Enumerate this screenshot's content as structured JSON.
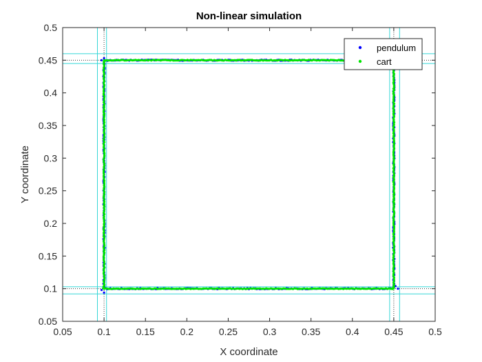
{
  "chart_data": {
    "type": "scatter",
    "title": "Non-linear simulation",
    "xlabel": "X coordinate",
    "ylabel": "Y coordinate",
    "xlim": [
      0.05,
      0.5
    ],
    "ylim": [
      0.05,
      0.5
    ],
    "xticks": [
      0.05,
      0.1,
      0.15,
      0.2,
      0.25,
      0.3,
      0.35,
      0.4,
      0.45,
      0.5
    ],
    "yticks": [
      0.05,
      0.1,
      0.15,
      0.2,
      0.25,
      0.3,
      0.35,
      0.4,
      0.45,
      0.5
    ],
    "xtick_labels": [
      "0.05",
      "0.1",
      "0.15",
      "0.2",
      "0.25",
      "0.3",
      "0.35",
      "0.4",
      "0.45",
      "0.5"
    ],
    "ytick_labels": [
      "0.05",
      "0.1",
      "0.15",
      "0.2",
      "0.25",
      "0.3",
      "0.35",
      "0.4",
      "0.45",
      "0.5"
    ],
    "grid": false,
    "legend_position": "top-right",
    "reference_lines": {
      "cyan_vertical": [
        0.092,
        0.103,
        0.445,
        0.457
      ],
      "cyan_horizontal": [
        0.092,
        0.103,
        0.445,
        0.46
      ],
      "dotted_vertical": [
        0.1,
        0.45
      ],
      "dotted_horizontal": [
        0.1,
        0.45
      ],
      "cyan_color": "#33d6d6",
      "dotted_color": "#333333"
    },
    "series": [
      {
        "name": "pendulum",
        "color": "#0000ff",
        "path": [
          [
            0.1,
            0.1
          ],
          [
            0.45,
            0.1
          ],
          [
            0.45,
            0.45
          ],
          [
            0.1,
            0.45
          ],
          [
            0.1,
            0.1
          ]
        ],
        "corner_points": [
          [
            0.1,
            0.094
          ],
          [
            0.097,
            0.098
          ],
          [
            0.455,
            0.1
          ],
          [
            0.452,
            0.104
          ],
          [
            0.097,
            0.45
          ],
          [
            0.1,
            0.453
          ],
          [
            0.104,
            0.449
          ]
        ]
      },
      {
        "name": "cart",
        "color": "#00e600",
        "path": [
          [
            0.1,
            0.1
          ],
          [
            0.45,
            0.1
          ],
          [
            0.45,
            0.45
          ],
          [
            0.1,
            0.45
          ],
          [
            0.1,
            0.1
          ]
        ],
        "corner_points": [
          [
            0.099,
            0.101
          ],
          [
            0.449,
            0.101
          ],
          [
            0.449,
            0.449
          ],
          [
            0.101,
            0.449
          ]
        ]
      }
    ]
  }
}
